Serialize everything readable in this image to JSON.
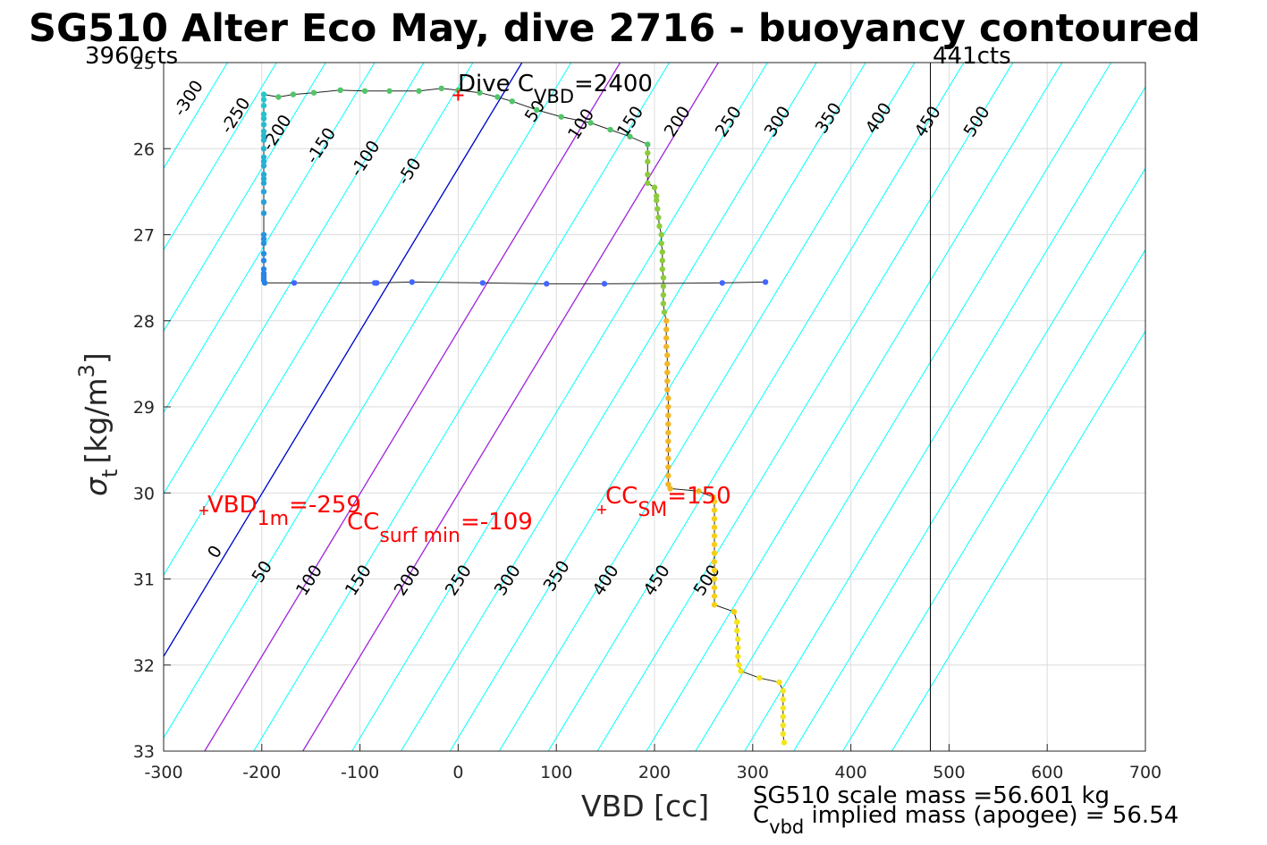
{
  "chart_data": {
    "type": "scatter",
    "title": "SG510 Alter Eco May, dive 2716 - buoyancy contoured",
    "xlabel": "VBD [cc]",
    "ylabel_main": "σ",
    "ylabel_sub": "t",
    "ylabel_units": "[kg/m",
    "ylabel_sup": "3",
    "ylabel_close": "]",
    "xlim": [
      -300,
      700
    ],
    "ylim": [
      25,
      33
    ],
    "y_reversed": true,
    "grid": true,
    "x_ticks": [
      -300,
      -200,
      -100,
      0,
      100,
      200,
      300,
      400,
      500,
      600,
      700
    ],
    "y_ticks": [
      25,
      26,
      27,
      28,
      29,
      30,
      31,
      32,
      33
    ],
    "counts_left": "3960cts",
    "counts_right": "441cts",
    "counts_right_x": 481,
    "contour_line_color": "#00ffff",
    "contour_offsets": [
      -300,
      -250,
      -200,
      -150,
      -100,
      -50,
      0,
      50,
      100,
      150,
      200,
      250,
      300,
      350,
      400,
      450,
      500,
      550,
      600,
      650,
      700,
      750,
      800
    ],
    "highlight_lines": [
      {
        "offset": 0,
        "color": "#0000cc"
      },
      {
        "offset": 100,
        "color": "#aa22dd"
      },
      {
        "offset": 200,
        "color": "#aa22dd"
      }
    ],
    "contour_labels_top": [
      {
        "text": "-300",
        "x": -270,
        "y": 25.45
      },
      {
        "text": "-250",
        "x": -222,
        "y": 25.65
      },
      {
        "text": "-200",
        "x": -180,
        "y": 25.85
      },
      {
        "text": "-150",
        "x": -135,
        "y": 26.0
      },
      {
        "text": "-100",
        "x": -90,
        "y": 26.15
      },
      {
        "text": "-50",
        "x": -45,
        "y": 26.3
      },
      {
        "text": "50",
        "x": 83,
        "y": 25.6
      },
      {
        "text": "100",
        "x": 130,
        "y": 25.75
      },
      {
        "text": "150",
        "x": 180,
        "y": 25.72
      },
      {
        "text": "200",
        "x": 228,
        "y": 25.72
      },
      {
        "text": "250",
        "x": 280,
        "y": 25.72
      },
      {
        "text": "300",
        "x": 330,
        "y": 25.72
      },
      {
        "text": "350",
        "x": 382,
        "y": 25.68
      },
      {
        "text": "400",
        "x": 433,
        "y": 25.68
      },
      {
        "text": "450",
        "x": 483,
        "y": 25.72
      },
      {
        "text": "500",
        "x": 533,
        "y": 25.72
      }
    ],
    "contour_labels_bottom": [
      {
        "text": "0",
        "x": -243,
        "y": 30.72
      },
      {
        "text": "50",
        "x": -195,
        "y": 30.95
      },
      {
        "text": "100",
        "x": -147,
        "y": 31.05
      },
      {
        "text": "150",
        "x": -97,
        "y": 31.05
      },
      {
        "text": "200",
        "x": -47,
        "y": 31.05
      },
      {
        "text": "250",
        "x": 5,
        "y": 31.05
      },
      {
        "text": "300",
        "x": 55,
        "y": 31.05
      },
      {
        "text": "350",
        "x": 105,
        "y": 31.0
      },
      {
        "text": "400",
        "x": 155,
        "y": 31.05
      },
      {
        "text": "450",
        "x": 207,
        "y": 31.05
      },
      {
        "text": "500",
        "x": 258,
        "y": 31.05
      }
    ],
    "dive_cvbd": {
      "label_main": "Dive C",
      "label_sub": "VBD",
      "label_value": "=2400",
      "x": 0,
      "y": 25.38
    },
    "annotations": [
      {
        "main": "VBD",
        "sub": "1m",
        "value": "=-259",
        "marker_x": -259,
        "marker_y": 30.2
      },
      {
        "main": "CC",
        "sub": "surf min",
        "value": "=-109",
        "marker_x": -109,
        "marker_y": 30.35
      },
      {
        "main": "CC",
        "sub": "SM",
        "value": "=150",
        "marker_x": 150,
        "marker_y": 30.2
      }
    ],
    "mass_text_1": "SG510 scale mass =56.601 kg",
    "mass_text_2_main": "C",
    "mass_text_2_sub": "vbd",
    "mass_text_2_rest": " implied mass (apogee) = 56.54",
    "series": [
      {
        "type": "line_points",
        "points": [
          [
            313,
            27.55
          ],
          [
            269,
            27.56
          ],
          [
            149,
            27.57
          ],
          [
            90,
            27.57
          ],
          [
            25,
            27.56
          ],
          [
            -47,
            27.55
          ],
          [
            -83,
            27.56
          ],
          [
            -85,
            27.56
          ],
          [
            -167,
            27.56
          ],
          [
            -197,
            27.56
          ],
          [
            -198,
            27.53
          ],
          [
            -198,
            27.5
          ],
          [
            -198,
            27.47
          ],
          [
            -198,
            27.45
          ],
          [
            -198,
            27.4
          ],
          [
            -198,
            27.3
          ],
          [
            -198,
            27.22
          ],
          [
            -198,
            27.1
          ],
          [
            -198,
            27.05
          ],
          [
            -198,
            27.0
          ],
          [
            -198,
            26.75
          ],
          [
            -198,
            26.62
          ],
          [
            -198,
            26.5
          ],
          [
            -198,
            26.4
          ],
          [
            -198,
            26.35
          ],
          [
            -198,
            26.3
          ],
          [
            -198,
            26.2
          ],
          [
            -198,
            26.15
          ],
          [
            -198,
            26.1
          ],
          [
            -198,
            26.0
          ],
          [
            -198,
            25.9
          ],
          [
            -198,
            25.85
          ],
          [
            -198,
            25.8
          ],
          [
            -198,
            25.72
          ],
          [
            -198,
            25.65
          ],
          [
            -198,
            25.6
          ],
          [
            -198,
            25.5
          ],
          [
            -198,
            25.43
          ],
          [
            -198,
            25.37
          ],
          [
            -183,
            25.4
          ],
          [
            -168,
            25.37
          ],
          [
            -147,
            25.35
          ],
          [
            -120,
            25.32
          ],
          [
            -95,
            25.33
          ],
          [
            -70,
            25.33
          ],
          [
            -40,
            25.33
          ],
          [
            -17,
            25.3
          ],
          [
            0,
            25.32
          ],
          [
            22,
            25.35
          ],
          [
            40,
            25.4
          ],
          [
            55,
            25.45
          ],
          [
            80,
            25.55
          ],
          [
            105,
            25.63
          ],
          [
            135,
            25.7
          ],
          [
            155,
            25.78
          ],
          [
            175,
            25.86
          ],
          [
            193,
            25.95
          ],
          [
            193,
            26.05
          ],
          [
            193,
            26.15
          ],
          [
            193,
            26.3
          ],
          [
            193,
            26.4
          ],
          [
            200,
            26.45
          ],
          [
            202,
            26.55
          ],
          [
            202,
            26.6
          ],
          [
            203,
            26.7
          ],
          [
            204,
            26.8
          ],
          [
            205,
            26.9
          ],
          [
            207,
            27.0
          ],
          [
            207,
            27.1
          ],
          [
            208,
            27.2
          ],
          [
            208,
            27.3
          ],
          [
            208,
            27.4
          ],
          [
            209,
            27.5
          ],
          [
            209,
            27.6
          ],
          [
            209,
            27.7
          ],
          [
            209,
            27.8
          ],
          [
            210,
            27.9
          ],
          [
            212,
            28.0
          ],
          [
            212,
            28.1
          ],
          [
            212,
            28.2
          ],
          [
            212,
            28.3
          ],
          [
            213,
            28.4
          ],
          [
            213,
            28.5
          ],
          [
            213,
            28.6
          ],
          [
            213,
            28.7
          ],
          [
            213,
            28.8
          ],
          [
            214,
            28.9
          ],
          [
            214,
            29.0
          ],
          [
            214,
            29.1
          ],
          [
            214,
            29.2
          ],
          [
            214,
            29.3
          ],
          [
            214,
            29.4
          ],
          [
            214,
            29.5
          ],
          [
            214,
            29.6
          ],
          [
            214,
            29.7
          ],
          [
            214,
            29.8
          ],
          [
            214,
            29.9
          ],
          [
            216,
            29.95
          ],
          [
            245,
            29.98
          ],
          [
            260,
            30.05
          ],
          [
            261,
            30.1
          ],
          [
            261,
            30.2
          ],
          [
            261,
            30.3
          ],
          [
            261,
            30.4
          ],
          [
            261,
            30.5
          ],
          [
            261,
            30.6
          ],
          [
            261,
            30.7
          ],
          [
            261,
            30.8
          ],
          [
            261,
            30.9
          ],
          [
            261,
            31.0
          ],
          [
            261,
            31.1
          ],
          [
            261,
            31.2
          ],
          [
            261,
            31.3
          ],
          [
            281,
            31.38
          ],
          [
            284,
            31.5
          ],
          [
            284,
            31.6
          ],
          [
            285,
            31.7
          ],
          [
            285,
            31.8
          ],
          [
            285,
            31.9
          ],
          [
            286,
            32.0
          ],
          [
            288,
            32.07
          ],
          [
            307,
            32.15
          ],
          [
            327,
            32.2
          ],
          [
            331,
            32.3
          ],
          [
            331,
            32.4
          ],
          [
            331,
            32.5
          ],
          [
            331,
            32.6
          ],
          [
            331,
            32.7
          ],
          [
            331,
            32.8
          ],
          [
            332,
            32.9
          ]
        ]
      }
    ]
  }
}
